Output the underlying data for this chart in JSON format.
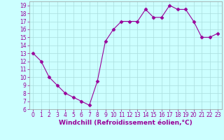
{
  "x": [
    0,
    1,
    2,
    3,
    4,
    5,
    6,
    7,
    8,
    9,
    10,
    11,
    12,
    13,
    14,
    15,
    16,
    17,
    18,
    19,
    20,
    21,
    22,
    23
  ],
  "y": [
    13,
    12,
    10,
    9,
    8,
    7.5,
    7,
    6.5,
    9.5,
    14.5,
    16,
    17,
    17,
    17,
    18.5,
    17.5,
    17.5,
    19,
    18.5,
    18.5,
    17,
    15,
    15,
    15.5
  ],
  "line_color": "#990099",
  "marker": "D",
  "marker_size": 2.5,
  "bg_color": "#ccffff",
  "grid_color": "#aadddd",
  "xlabel": "Windchill (Refroidissement éolien,°C)",
  "xlim": [
    -0.5,
    23.5
  ],
  "ylim": [
    6,
    19.5
  ],
  "yticks": [
    6,
    7,
    8,
    9,
    10,
    11,
    12,
    13,
    14,
    15,
    16,
    17,
    18,
    19
  ],
  "xticks": [
    0,
    1,
    2,
    3,
    4,
    5,
    6,
    7,
    8,
    9,
    10,
    11,
    12,
    13,
    14,
    15,
    16,
    17,
    18,
    19,
    20,
    21,
    22,
    23
  ],
  "tick_fontsize": 5.5,
  "label_fontsize": 6.5,
  "spine_color": "#999999"
}
